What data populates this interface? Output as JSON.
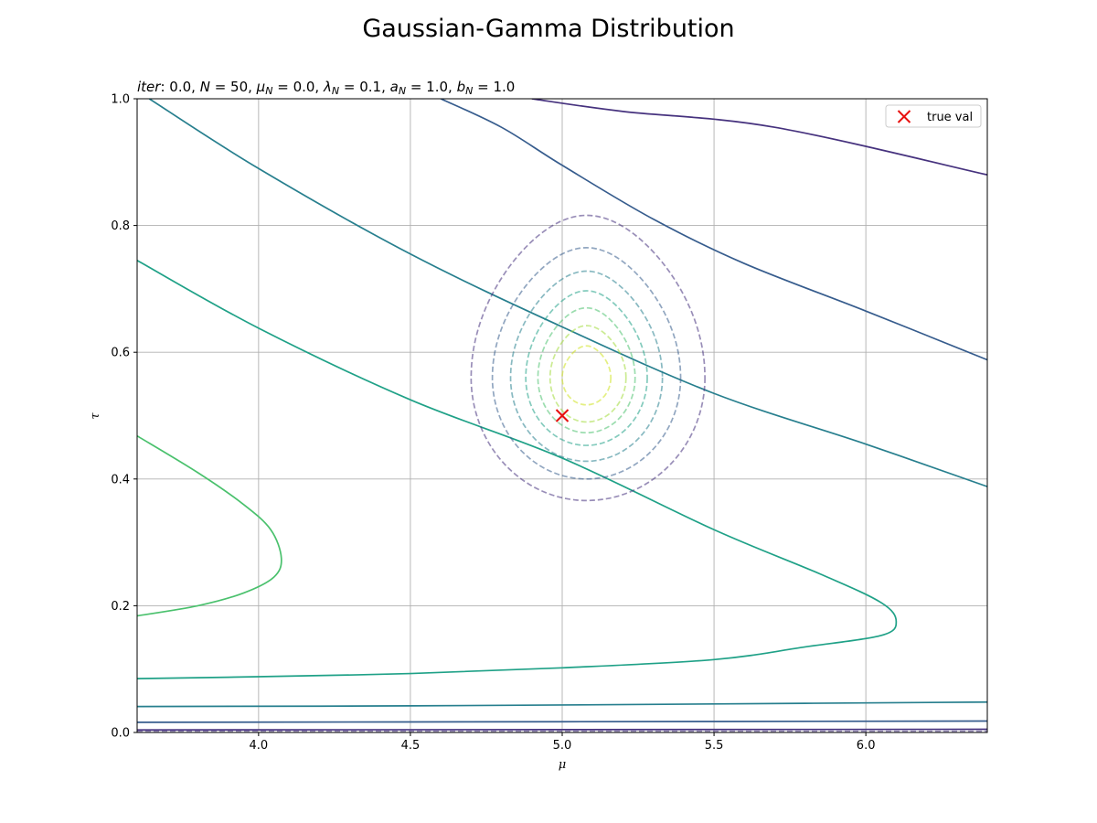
{
  "chart_data": {
    "type": "contour",
    "suptitle": "Gaussian-Gamma Distribution",
    "title": "iter: 0.0, N = 50, μ_N = 0.0, λ_N = 0.1, a_N = 1.0, b_N = 1.0",
    "title_parts": {
      "iter": "iter",
      "iter_val": "0.0",
      "N": "N",
      "N_val": "50",
      "mu": "μ",
      "mu_sub": "N",
      "mu_val": "0.0",
      "lambda": "λ",
      "lambda_sub": "N",
      "lambda_val": "0.1",
      "a": "a",
      "a_sub": "N",
      "a_val": "1.0",
      "b": "b",
      "b_sub": "N",
      "b_val": "1.0"
    },
    "xlabel": "μ",
    "ylabel": "τ",
    "xlim": [
      3.6,
      6.4
    ],
    "ylim": [
      0.0,
      1.0
    ],
    "xticks": [
      4.0,
      4.5,
      5.0,
      5.5,
      6.0
    ],
    "xtick_labels": [
      "4.0",
      "4.5",
      "5.0",
      "5.5",
      "6.0"
    ],
    "yticks": [
      0.0,
      0.2,
      0.4,
      0.6,
      0.8,
      1.0
    ],
    "ytick_labels": [
      "0.0",
      "0.2",
      "0.4",
      "0.6",
      "0.8",
      "1.0"
    ],
    "grid": true,
    "legend_position": "top-right",
    "legend": [
      {
        "label": "true val",
        "marker": "x",
        "color": "#e8100e"
      }
    ],
    "true_value": {
      "mu": 5.0,
      "tau": 0.5
    },
    "prior_contours": {
      "style": "solid",
      "lines": [
        {
          "color": "#46327e",
          "points": [
            [
              4.9,
              1.0
            ],
            [
              5.2,
              0.98
            ],
            [
              5.7,
              0.955
            ],
            [
              6.4,
              0.88
            ]
          ]
        },
        {
          "color": "#365c8d",
          "points": [
            [
              4.6,
              1.0
            ],
            [
              4.8,
              0.955
            ],
            [
              5.0,
              0.895
            ],
            [
              5.3,
              0.81
            ],
            [
              5.6,
              0.74
            ],
            [
              6.0,
              0.665
            ],
            [
              6.4,
              0.588
            ]
          ]
        },
        {
          "color": "#277f8e",
          "points": [
            [
              3.64,
              1.0
            ],
            [
              4.0,
              0.89
            ],
            [
              4.5,
              0.755
            ],
            [
              5.0,
              0.64
            ],
            [
              5.5,
              0.535
            ],
            [
              6.0,
              0.455
            ],
            [
              6.4,
              0.388
            ]
          ]
        },
        {
          "color": "#1fa187",
          "points": [
            [
              3.6,
              0.745
            ],
            [
              4.0,
              0.638
            ],
            [
              4.5,
              0.525
            ],
            [
              5.0,
              0.433
            ],
            [
              5.5,
              0.32
            ],
            [
              5.85,
              0.25
            ],
            [
              6.05,
              0.205
            ],
            [
              6.1,
              0.175
            ],
            [
              6.05,
              0.153
            ],
            [
              5.8,
              0.135
            ],
            [
              5.5,
              0.115
            ],
            [
              5.0,
              0.102
            ],
            [
              4.5,
              0.093
            ],
            [
              4.0,
              0.088
            ],
            [
              3.6,
              0.085
            ]
          ]
        },
        {
          "color": "#4ac16d",
          "points": [
            [
              3.6,
              0.468
            ],
            [
              3.8,
              0.41
            ],
            [
              3.95,
              0.36
            ],
            [
              4.04,
              0.32
            ],
            [
              4.075,
              0.275
            ],
            [
              4.05,
              0.245
            ],
            [
              3.95,
              0.22
            ],
            [
              3.8,
              0.2
            ],
            [
              3.6,
              0.184
            ]
          ]
        },
        {
          "color": "#277f8e",
          "points": [
            [
              3.6,
              0.041
            ],
            [
              4.5,
              0.042
            ],
            [
              5.5,
              0.045
            ],
            [
              6.4,
              0.048
            ]
          ]
        },
        {
          "color": "#365c8d",
          "points": [
            [
              3.6,
              0.016
            ],
            [
              5.0,
              0.017
            ],
            [
              6.4,
              0.018
            ]
          ]
        },
        {
          "color": "#46327e",
          "points": [
            [
              3.6,
              0.004
            ],
            [
              6.4,
              0.005
            ]
          ]
        }
      ]
    },
    "posterior_contours": {
      "style": "dashed",
      "center": {
        "mu": 5.08,
        "tau": 0.56
      },
      "rings": [
        {
          "color": "#46327e",
          "mu_left": 4.7,
          "mu_right": 5.47,
          "tau_top": 0.816,
          "tau_bottom": 0.366
        },
        {
          "color": "#365c8d",
          "mu_left": 4.77,
          "mu_right": 5.39,
          "tau_top": 0.765,
          "tau_bottom": 0.4
        },
        {
          "color": "#277f8e",
          "mu_left": 4.83,
          "mu_right": 5.33,
          "tau_top": 0.728,
          "tau_bottom": 0.428
        },
        {
          "color": "#1fa187",
          "mu_left": 4.88,
          "mu_right": 5.28,
          "tau_top": 0.697,
          "tau_bottom": 0.453
        },
        {
          "color": "#4ac16d",
          "mu_left": 4.92,
          "mu_right": 5.24,
          "tau_top": 0.67,
          "tau_bottom": 0.473
        },
        {
          "color": "#a0da39",
          "mu_left": 4.96,
          "mu_right": 5.21,
          "tau_top": 0.642,
          "tau_bottom": 0.49
        },
        {
          "color": "#cde11d",
          "mu_left": 5.0,
          "mu_right": 5.16,
          "tau_top": 0.61,
          "tau_bottom": 0.517
        }
      ],
      "baseline_color": "#46327e"
    }
  }
}
